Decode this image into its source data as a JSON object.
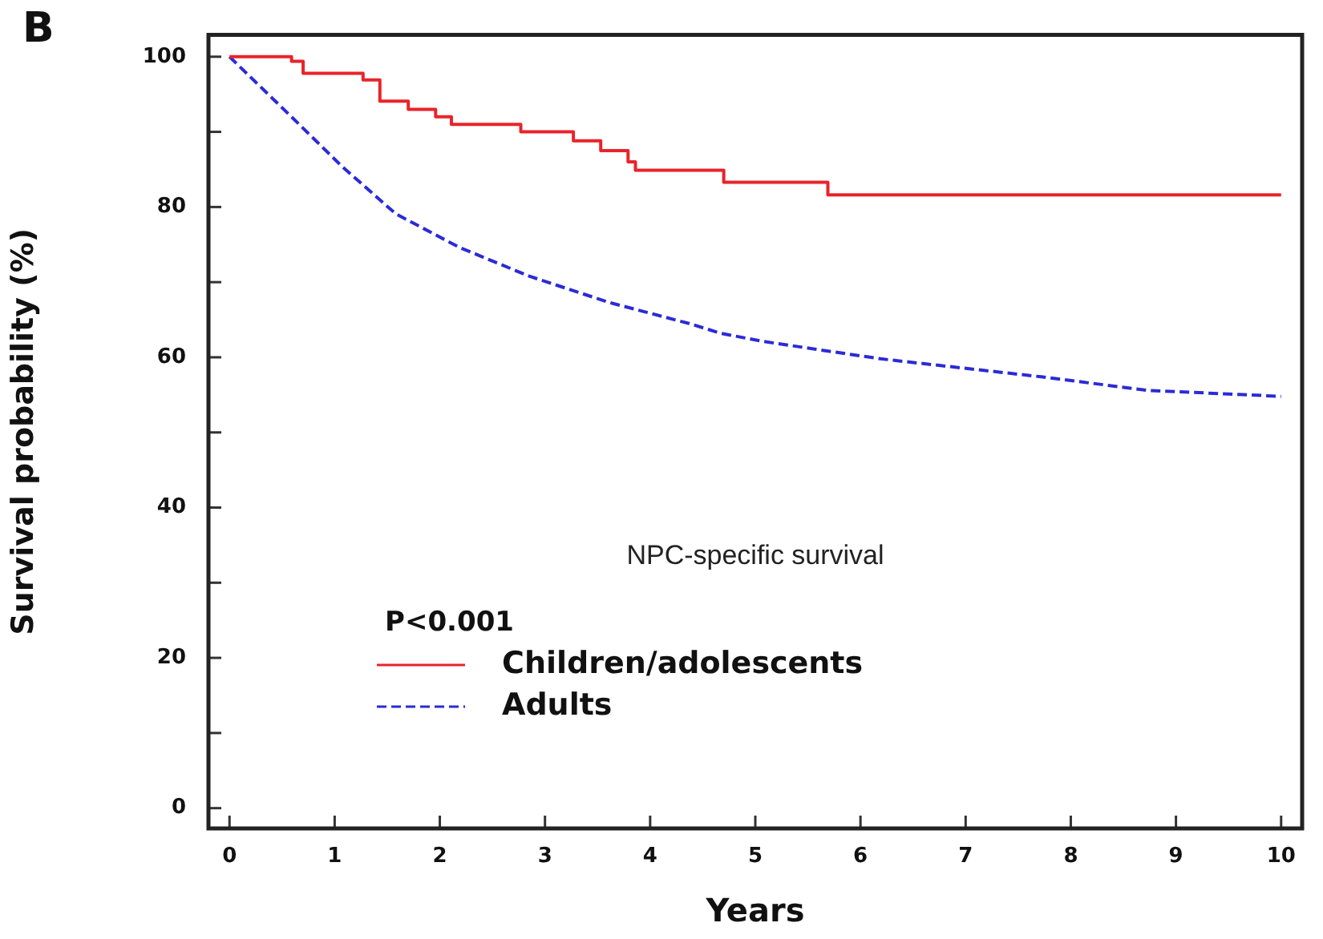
{
  "chart_data": {
    "type": "line",
    "xlabel": "Years",
    "ylabel": "Survival probability (%)",
    "legend_title": "P<0.001",
    "legend": "bottom left",
    "grid": false,
    "marker": "none",
    "annotations": [
      "B",
      "NPC-specific survival"
    ],
    "xlim": [
      -0.2,
      10.2
    ],
    "xticks": [
      0,
      1,
      2,
      3,
      4,
      5,
      6,
      7,
      8,
      9,
      10
    ],
    "ylim": [
      -2.7,
      102.9
    ],
    "yticks": [
      0,
      {
        "value": 10,
        "label": null
      },
      20,
      {
        "value": 30,
        "label": null
      },
      40,
      {
        "value": 50,
        "label": null
      },
      60,
      {
        "value": 70,
        "label": null
      },
      80,
      {
        "value": 90,
        "label": null
      },
      100
    ],
    "series": [
      {
        "name": "Children/adolescents",
        "type": "step",
        "color": "#e8242a",
        "line_style": "solid",
        "x": [
          0,
          0.59,
          0.7,
          1.27,
          1.43,
          1.7,
          1.96,
          2.11,
          2.77,
          3.27,
          3.53,
          3.79,
          3.86,
          4.7,
          5.69,
          10
        ],
        "values": [
          100,
          99.4,
          97.8,
          96.9,
          94.1,
          93,
          92,
          91,
          90,
          88.8,
          87.5,
          86,
          84.9,
          83.3,
          81.6,
          81.6
        ]
      },
      {
        "name": "Adults",
        "type": "line",
        "color": "#2b2bd6",
        "line_style": "dashed",
        "x": [
          0,
          0.56,
          1.07,
          1.58,
          2.19,
          2.85,
          3.61,
          4.37,
          4.67,
          5.08,
          6.19,
          7.72,
          8.73,
          10
        ],
        "values": [
          100,
          92.4,
          85.4,
          79.1,
          74.6,
          70.8,
          67.3,
          64.5,
          63.2,
          62.1,
          59.8,
          57.4,
          55.6,
          54.8
        ]
      }
    ]
  }
}
